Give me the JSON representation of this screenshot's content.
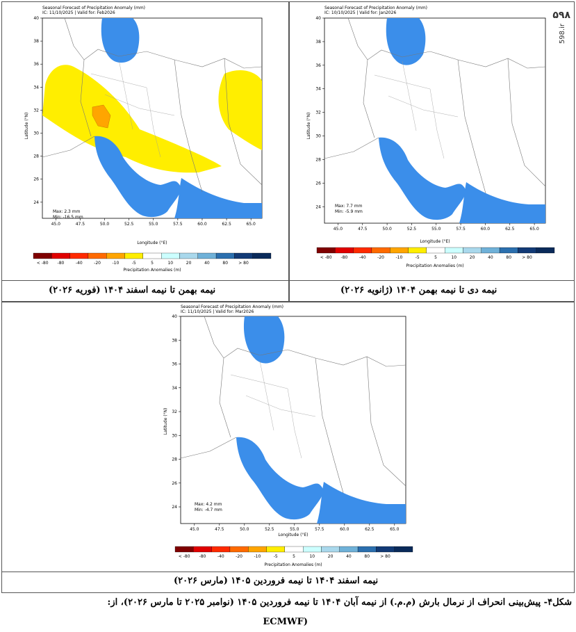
{
  "panels": [
    {
      "id": "feb",
      "header_title": "Seasonal Forecast of Precipitation Anomaly (mm)",
      "header_ic": "IC: 11/10/2025 | Valid for: Feb2026",
      "stats_max": "Max: 2.3 mm",
      "stats_min": "Min: -16.5 mm",
      "caption": "نیمه بهمن تا نیمه اسفند ۱۴۰۴ (فوریه ۲۰۲۶)"
    },
    {
      "id": "jan",
      "header_title": "Seasonal Forecast of Precipitation Anomaly (mm)",
      "header_ic": "IC: 10/10/2025 | Valid for: Jan2026",
      "stats_max": "Max: 7.7 mm",
      "stats_min": "Min: -5.9 mm",
      "caption": "نیمه دی تا نیمه بهمن ۱۴۰۴ (ژانویه ۲۰۲۶)"
    },
    {
      "id": "mar",
      "header_title": "Seasonal Forecast of Precipitation Anomaly (mm)",
      "header_ic": "IC: 11/10/2025 | Valid for: Mar2026",
      "stats_max": "Max: 4.2 mm",
      "stats_min": "Min: -4.7 mm",
      "caption": "نیمه اسفند ۱۴۰۴ تا نیمه فروردین ۱۴۰۵ (مارس ۲۰۲۶)"
    }
  ],
  "axes": {
    "xlabel": "Longitude (°E)",
    "ylabel": "Latitude (°N)",
    "x_ticks": [
      "45.0",
      "47.5",
      "50.0",
      "52.5",
      "55.0",
      "57.5",
      "60.0",
      "62.5",
      "65.0"
    ],
    "y_ticks": [
      "40",
      "38",
      "36",
      "34",
      "32",
      "30",
      "28",
      "26",
      "24"
    ]
  },
  "colorbar": {
    "label": "Precipitation Anomalies (m)",
    "tick_labels": [
      "< -80",
      "-80",
      "-40",
      "-20",
      "-10",
      "-5",
      "5",
      "10",
      "20",
      "40",
      "80",
      "> 80"
    ],
    "colors": [
      "#7f0000",
      "#e00000",
      "#ff2a00",
      "#ff6a00",
      "#ffa500",
      "#ffee00",
      "#ffffff",
      "#ccffff",
      "#a9d8ec",
      "#6fb1d8",
      "#2b6fae",
      "#123a76",
      "#0a2a5a"
    ]
  },
  "colors": {
    "water": "#3b8eea",
    "border": "#777777",
    "yellow": "#ffee00",
    "orange": "#ffa500"
  },
  "figure_caption": "شکل۴- پیش‌بینی انحراف از نرمال بارش (م.م.) از نیمه آبان ۱۴۰۴ تا نیمه فروردین ۱۴۰۵ (نوامبر ۲۰۲۵ تا مارس ۲۰۲۶)، از:",
  "figure_source": "(ECMWF",
  "watermark_logo": "۵۹۸",
  "watermark_url": "598.ir"
}
